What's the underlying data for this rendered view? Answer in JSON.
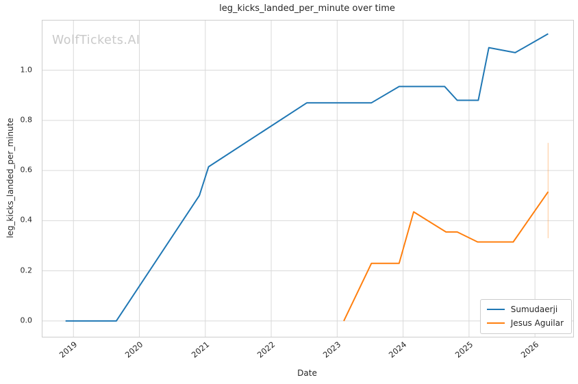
{
  "watermark": "WolfTickets.AI",
  "colors": {
    "grid": "#d9d9d9",
    "spine": "#cccccc",
    "text": "#262626",
    "watermark": "#c9c9c9",
    "background": "#ffffff"
  },
  "chart_data": {
    "type": "line",
    "title": "leg_kicks_landed_per_minute over time",
    "xlabel": "Date",
    "ylabel": "leg_kicks_landed_per_minute",
    "grid": true,
    "legend_position": "lower right",
    "xlim": [
      2018.53,
      2026.58
    ],
    "ylim": [
      -0.063,
      1.198
    ],
    "x_tick_values": [
      2019,
      2020,
      2021,
      2022,
      2023,
      2024,
      2025,
      2026
    ],
    "x_tick_labels": [
      "2019",
      "2020",
      "2021",
      "2022",
      "2023",
      "2024",
      "2025",
      "2026"
    ],
    "y_tick_values": [
      0.0,
      0.2,
      0.4,
      0.6,
      0.8,
      1.0
    ],
    "y_tick_labels": [
      "0.0",
      "0.2",
      "0.4",
      "0.6",
      "0.8",
      "1.0"
    ],
    "series": [
      {
        "name": "Sumudaerji",
        "color": "#1f77b4",
        "x": [
          2018.88,
          2019.65,
          2020.91,
          2021.05,
          2022.54,
          2023.52,
          2023.94,
          2024.63,
          2024.82,
          2025.14,
          2025.3,
          2025.7,
          2026.2
        ],
        "y": [
          0.0,
          0.0,
          0.5,
          0.615,
          0.87,
          0.87,
          0.935,
          0.935,
          0.88,
          0.88,
          1.09,
          1.07,
          1.145
        ]
      },
      {
        "name": "Jesus Aguilar",
        "color": "#ff7f0e",
        "x": [
          2023.1,
          2023.52,
          2023.94,
          2024.16,
          2024.65,
          2024.82,
          2025.13,
          2025.67,
          2026.2
        ],
        "y": [
          0.0,
          0.23,
          0.23,
          0.435,
          0.355,
          0.355,
          0.315,
          0.315,
          0.515
        ],
        "error_bar": {
          "x": 2026.2,
          "y_low": 0.33,
          "y_high": 0.71,
          "opacity": 0.3
        }
      }
    ]
  }
}
